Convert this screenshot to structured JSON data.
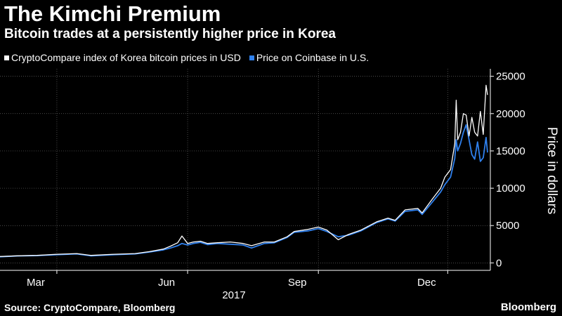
{
  "header": {
    "title": "The Kimchi Premium",
    "subtitle": "Bitcoin trades at a persistently higher price in Korea"
  },
  "footer": {
    "source": "Source: CryptoCompare, Bloomberg",
    "brand": "Bloomberg"
  },
  "chart_data": {
    "type": "line",
    "title": "The Kimchi Premium",
    "subtitle": "Bitcoin trades at a persistently higher price in Korea",
    "ylabel": "Price in dollars",
    "xlabel": "2017",
    "ylim": [
      -1000,
      26000
    ],
    "yticks": [
      0,
      5000,
      10000,
      15000,
      20000,
      25000
    ],
    "xlim": [
      "2017-01-20",
      "2017-12-31"
    ],
    "xticks": [
      {
        "date": "2017-03-01",
        "label": "Mar"
      },
      {
        "date": "2017-06-01",
        "label": "Jun"
      },
      {
        "date": "2017-09-01",
        "label": "Sep"
      },
      {
        "date": "2017-12-01",
        "label": "Dec"
      }
    ],
    "year_label": "2017",
    "grid": true,
    "legend_position": "top-left",
    "series": [
      {
        "name": "CryptoCompare index of Korea bitcoin prices in USD",
        "color": "#ffffff",
        "points": [
          [
            "2017-01-20",
            850
          ],
          [
            "2017-02-01",
            950
          ],
          [
            "2017-02-15",
            1000
          ],
          [
            "2017-03-01",
            1150
          ],
          [
            "2017-03-15",
            1250
          ],
          [
            "2017-03-25",
            1000
          ],
          [
            "2017-04-10",
            1150
          ],
          [
            "2017-04-25",
            1250
          ],
          [
            "2017-05-05",
            1500
          ],
          [
            "2017-05-15",
            1850
          ],
          [
            "2017-05-20",
            2250
          ],
          [
            "2017-05-25",
            2700
          ],
          [
            "2017-05-28",
            3600
          ],
          [
            "2017-06-01",
            2600
          ],
          [
            "2017-06-05",
            2800
          ],
          [
            "2017-06-10",
            2900
          ],
          [
            "2017-06-15",
            2600
          ],
          [
            "2017-06-22",
            2700
          ],
          [
            "2017-07-01",
            2800
          ],
          [
            "2017-07-10",
            2600
          ],
          [
            "2017-07-16",
            2300
          ],
          [
            "2017-07-25",
            2800
          ],
          [
            "2017-08-01",
            2800
          ],
          [
            "2017-08-10",
            3500
          ],
          [
            "2017-08-15",
            4200
          ],
          [
            "2017-08-25",
            4500
          ],
          [
            "2017-09-01",
            4800
          ],
          [
            "2017-09-07",
            4400
          ],
          [
            "2017-09-15",
            3100
          ],
          [
            "2017-09-22",
            3800
          ],
          [
            "2017-10-01",
            4400
          ],
          [
            "2017-10-12",
            5500
          ],
          [
            "2017-10-20",
            6000
          ],
          [
            "2017-10-25",
            5700
          ],
          [
            "2017-11-01",
            7100
          ],
          [
            "2017-11-10",
            7300
          ],
          [
            "2017-11-13",
            6700
          ],
          [
            "2017-11-20",
            8500
          ],
          [
            "2017-11-26",
            10000
          ],
          [
            "2017-11-29",
            11500
          ],
          [
            "2017-12-03",
            12500
          ],
          [
            "2017-12-06",
            16000
          ],
          [
            "2017-12-07",
            21800
          ],
          [
            "2017-12-08",
            16500
          ],
          [
            "2017-12-10",
            17500
          ],
          [
            "2017-12-12",
            20000
          ],
          [
            "2017-12-14",
            19800
          ],
          [
            "2017-12-16",
            17000
          ],
          [
            "2017-12-18",
            19500
          ],
          [
            "2017-12-20",
            17500
          ],
          [
            "2017-12-22",
            17000
          ],
          [
            "2017-12-24",
            20300
          ],
          [
            "2017-12-26",
            17200
          ],
          [
            "2017-12-28",
            23800
          ],
          [
            "2017-12-29",
            22500
          ]
        ]
      },
      {
        "name": "Price on Coinbase in U.S.",
        "color": "#2f80ed",
        "points": [
          [
            "2017-01-20",
            820
          ],
          [
            "2017-02-01",
            930
          ],
          [
            "2017-02-15",
            980
          ],
          [
            "2017-03-01",
            1100
          ],
          [
            "2017-03-15",
            1200
          ],
          [
            "2017-03-25",
            950
          ],
          [
            "2017-04-10",
            1100
          ],
          [
            "2017-04-25",
            1200
          ],
          [
            "2017-05-05",
            1450
          ],
          [
            "2017-05-15",
            1750
          ],
          [
            "2017-05-20",
            2000
          ],
          [
            "2017-05-25",
            2300
          ],
          [
            "2017-05-28",
            2600
          ],
          [
            "2017-06-01",
            2400
          ],
          [
            "2017-06-05",
            2600
          ],
          [
            "2017-06-10",
            2750
          ],
          [
            "2017-06-15",
            2450
          ],
          [
            "2017-06-22",
            2600
          ],
          [
            "2017-07-01",
            2500
          ],
          [
            "2017-07-10",
            2400
          ],
          [
            "2017-07-16",
            2000
          ],
          [
            "2017-07-25",
            2600
          ],
          [
            "2017-08-01",
            2700
          ],
          [
            "2017-08-10",
            3400
          ],
          [
            "2017-08-15",
            4100
          ],
          [
            "2017-08-25",
            4300
          ],
          [
            "2017-09-01",
            4600
          ],
          [
            "2017-09-07",
            4200
          ],
          [
            "2017-09-15",
            3500
          ],
          [
            "2017-09-22",
            3700
          ],
          [
            "2017-10-01",
            4300
          ],
          [
            "2017-10-12",
            5400
          ],
          [
            "2017-10-20",
            5900
          ],
          [
            "2017-10-25",
            5600
          ],
          [
            "2017-11-01",
            6900
          ],
          [
            "2017-11-10",
            7100
          ],
          [
            "2017-11-13",
            6500
          ],
          [
            "2017-11-20",
            8100
          ],
          [
            "2017-11-26",
            9500
          ],
          [
            "2017-11-29",
            10500
          ],
          [
            "2017-12-03",
            11500
          ],
          [
            "2017-12-06",
            14000
          ],
          [
            "2017-12-07",
            16500
          ],
          [
            "2017-12-08",
            15000
          ],
          [
            "2017-12-10",
            16000
          ],
          [
            "2017-12-12",
            17500
          ],
          [
            "2017-12-14",
            18500
          ],
          [
            "2017-12-16",
            16500
          ],
          [
            "2017-12-18",
            14500
          ],
          [
            "2017-12-20",
            13900
          ],
          [
            "2017-12-22",
            16200
          ],
          [
            "2017-12-24",
            13600
          ],
          [
            "2017-12-26",
            14100
          ],
          [
            "2017-12-28",
            16800
          ],
          [
            "2017-12-29",
            14800
          ]
        ]
      }
    ]
  }
}
